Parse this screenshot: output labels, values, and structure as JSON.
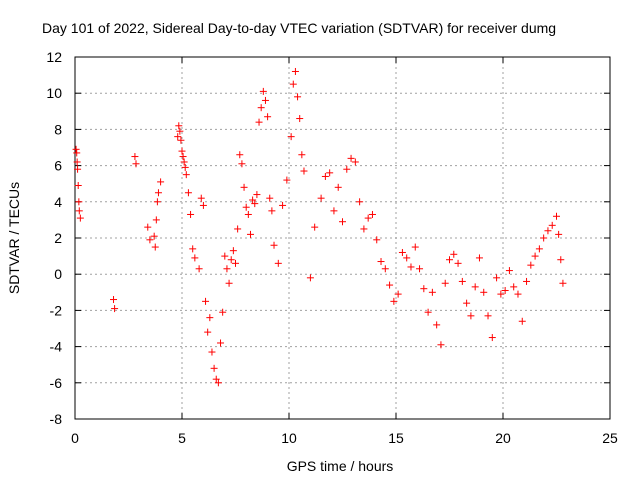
{
  "chart_data": {
    "type": "scatter",
    "title": "Day 101 of 2022, Sidereal Day-to-day VTEC variation (SDTVAR) for receiver dumg",
    "xlabel": "GPS time / hours",
    "ylabel": "SDTVAR / TECUs",
    "xlim": [
      0,
      25
    ],
    "ylim": [
      -8,
      12
    ],
    "xticks": [
      0,
      5,
      10,
      15,
      20,
      25
    ],
    "yticks": [
      -8,
      -6,
      -4,
      -2,
      0,
      2,
      4,
      6,
      8,
      10,
      12
    ],
    "xtick_labels": [
      "0",
      "5",
      "10",
      "15",
      "20",
      "25"
    ],
    "ytick_labels": [
      "-8",
      "-6",
      "-4",
      "-2",
      "0",
      "2",
      "4",
      "6",
      "8",
      "10",
      "12"
    ],
    "grid": true,
    "marker": "+",
    "color": "#ff0000",
    "series": [
      {
        "name": "SDTVAR",
        "x": [
          0.05,
          0.08,
          0.1,
          0.12,
          0.15,
          0.18,
          0.2,
          0.25,
          1.8,
          1.85,
          2.8,
          2.85,
          3.4,
          3.5,
          3.7,
          3.75,
          3.8,
          3.85,
          3.9,
          4.0,
          4.8,
          4.85,
          4.9,
          4.95,
          5.0,
          5.05,
          5.1,
          5.15,
          5.2,
          5.3,
          5.4,
          5.5,
          5.6,
          5.8,
          5.9,
          6.0,
          6.1,
          6.2,
          6.3,
          6.4,
          6.5,
          6.6,
          6.7,
          6.8,
          6.9,
          7.0,
          7.1,
          7.2,
          7.3,
          7.4,
          7.5,
          7.6,
          7.7,
          7.8,
          7.9,
          8.0,
          8.1,
          8.2,
          8.3,
          8.4,
          8.5,
          8.6,
          8.7,
          8.8,
          8.9,
          9.0,
          9.1,
          9.2,
          9.3,
          9.5,
          9.7,
          9.9,
          10.1,
          10.2,
          10.3,
          10.4,
          10.5,
          10.6,
          10.7,
          11.0,
          11.2,
          11.5,
          11.7,
          11.9,
          12.1,
          12.3,
          12.5,
          12.7,
          12.9,
          13.1,
          13.3,
          13.5,
          13.7,
          13.9,
          14.1,
          14.3,
          14.5,
          14.7,
          14.9,
          15.1,
          15.3,
          15.5,
          15.7,
          15.9,
          16.1,
          16.3,
          16.5,
          16.7,
          16.9,
          17.1,
          17.3,
          17.5,
          17.7,
          17.9,
          18.1,
          18.3,
          18.5,
          18.7,
          18.9,
          19.1,
          19.3,
          19.5,
          19.7,
          19.9,
          20.1,
          20.3,
          20.5,
          20.7,
          20.9,
          21.1,
          21.3,
          21.5,
          21.7,
          21.9,
          22.1,
          22.3,
          22.5,
          22.6,
          22.7,
          22.8
        ],
        "y": [
          6.9,
          6.7,
          6.2,
          5.8,
          4.9,
          4.0,
          3.5,
          3.1,
          -1.4,
          -1.9,
          6.5,
          6.1,
          2.6,
          1.9,
          2.1,
          1.5,
          3.0,
          4.0,
          4.5,
          5.1,
          7.6,
          8.2,
          7.9,
          7.4,
          6.8,
          6.5,
          6.2,
          5.9,
          5.5,
          4.5,
          3.3,
          1.4,
          0.9,
          0.3,
          4.2,
          3.8,
          -1.5,
          -3.2,
          -2.4,
          -4.3,
          -5.2,
          -5.8,
          -6.0,
          -3.8,
          -2.1,
          1.0,
          0.3,
          -0.5,
          0.8,
          1.3,
          0.6,
          2.5,
          6.6,
          6.1,
          4.8,
          3.7,
          3.3,
          2.2,
          4.1,
          3.9,
          4.4,
          8.4,
          9.2,
          10.1,
          9.6,
          8.7,
          4.2,
          3.5,
          1.6,
          0.6,
          3.8,
          5.2,
          7.6,
          10.5,
          11.2,
          9.8,
          8.6,
          6.6,
          5.7,
          -0.2,
          2.6,
          4.2,
          5.4,
          5.6,
          3.5,
          4.8,
          2.9,
          5.8,
          6.4,
          6.2,
          4.0,
          2.5,
          3.1,
          3.3,
          1.9,
          0.7,
          0.3,
          -0.6,
          -1.5,
          -1.1,
          1.2,
          0.9,
          0.4,
          1.5,
          0.3,
          -0.8,
          -2.1,
          -1.0,
          -2.8,
          -3.9,
          -0.5,
          0.8,
          1.1,
          0.6,
          -0.4,
          -1.6,
          -2.3,
          -0.7,
          0.9,
          -1.0,
          -2.3,
          -3.5,
          -0.2,
          -1.1,
          -0.9,
          0.2,
          -0.7,
          -1.1,
          -2.6,
          -0.4,
          0.5,
          1.0,
          1.4,
          2.0,
          2.4,
          2.7,
          3.2,
          2.2,
          0.8,
          -0.5
        ]
      }
    ]
  }
}
